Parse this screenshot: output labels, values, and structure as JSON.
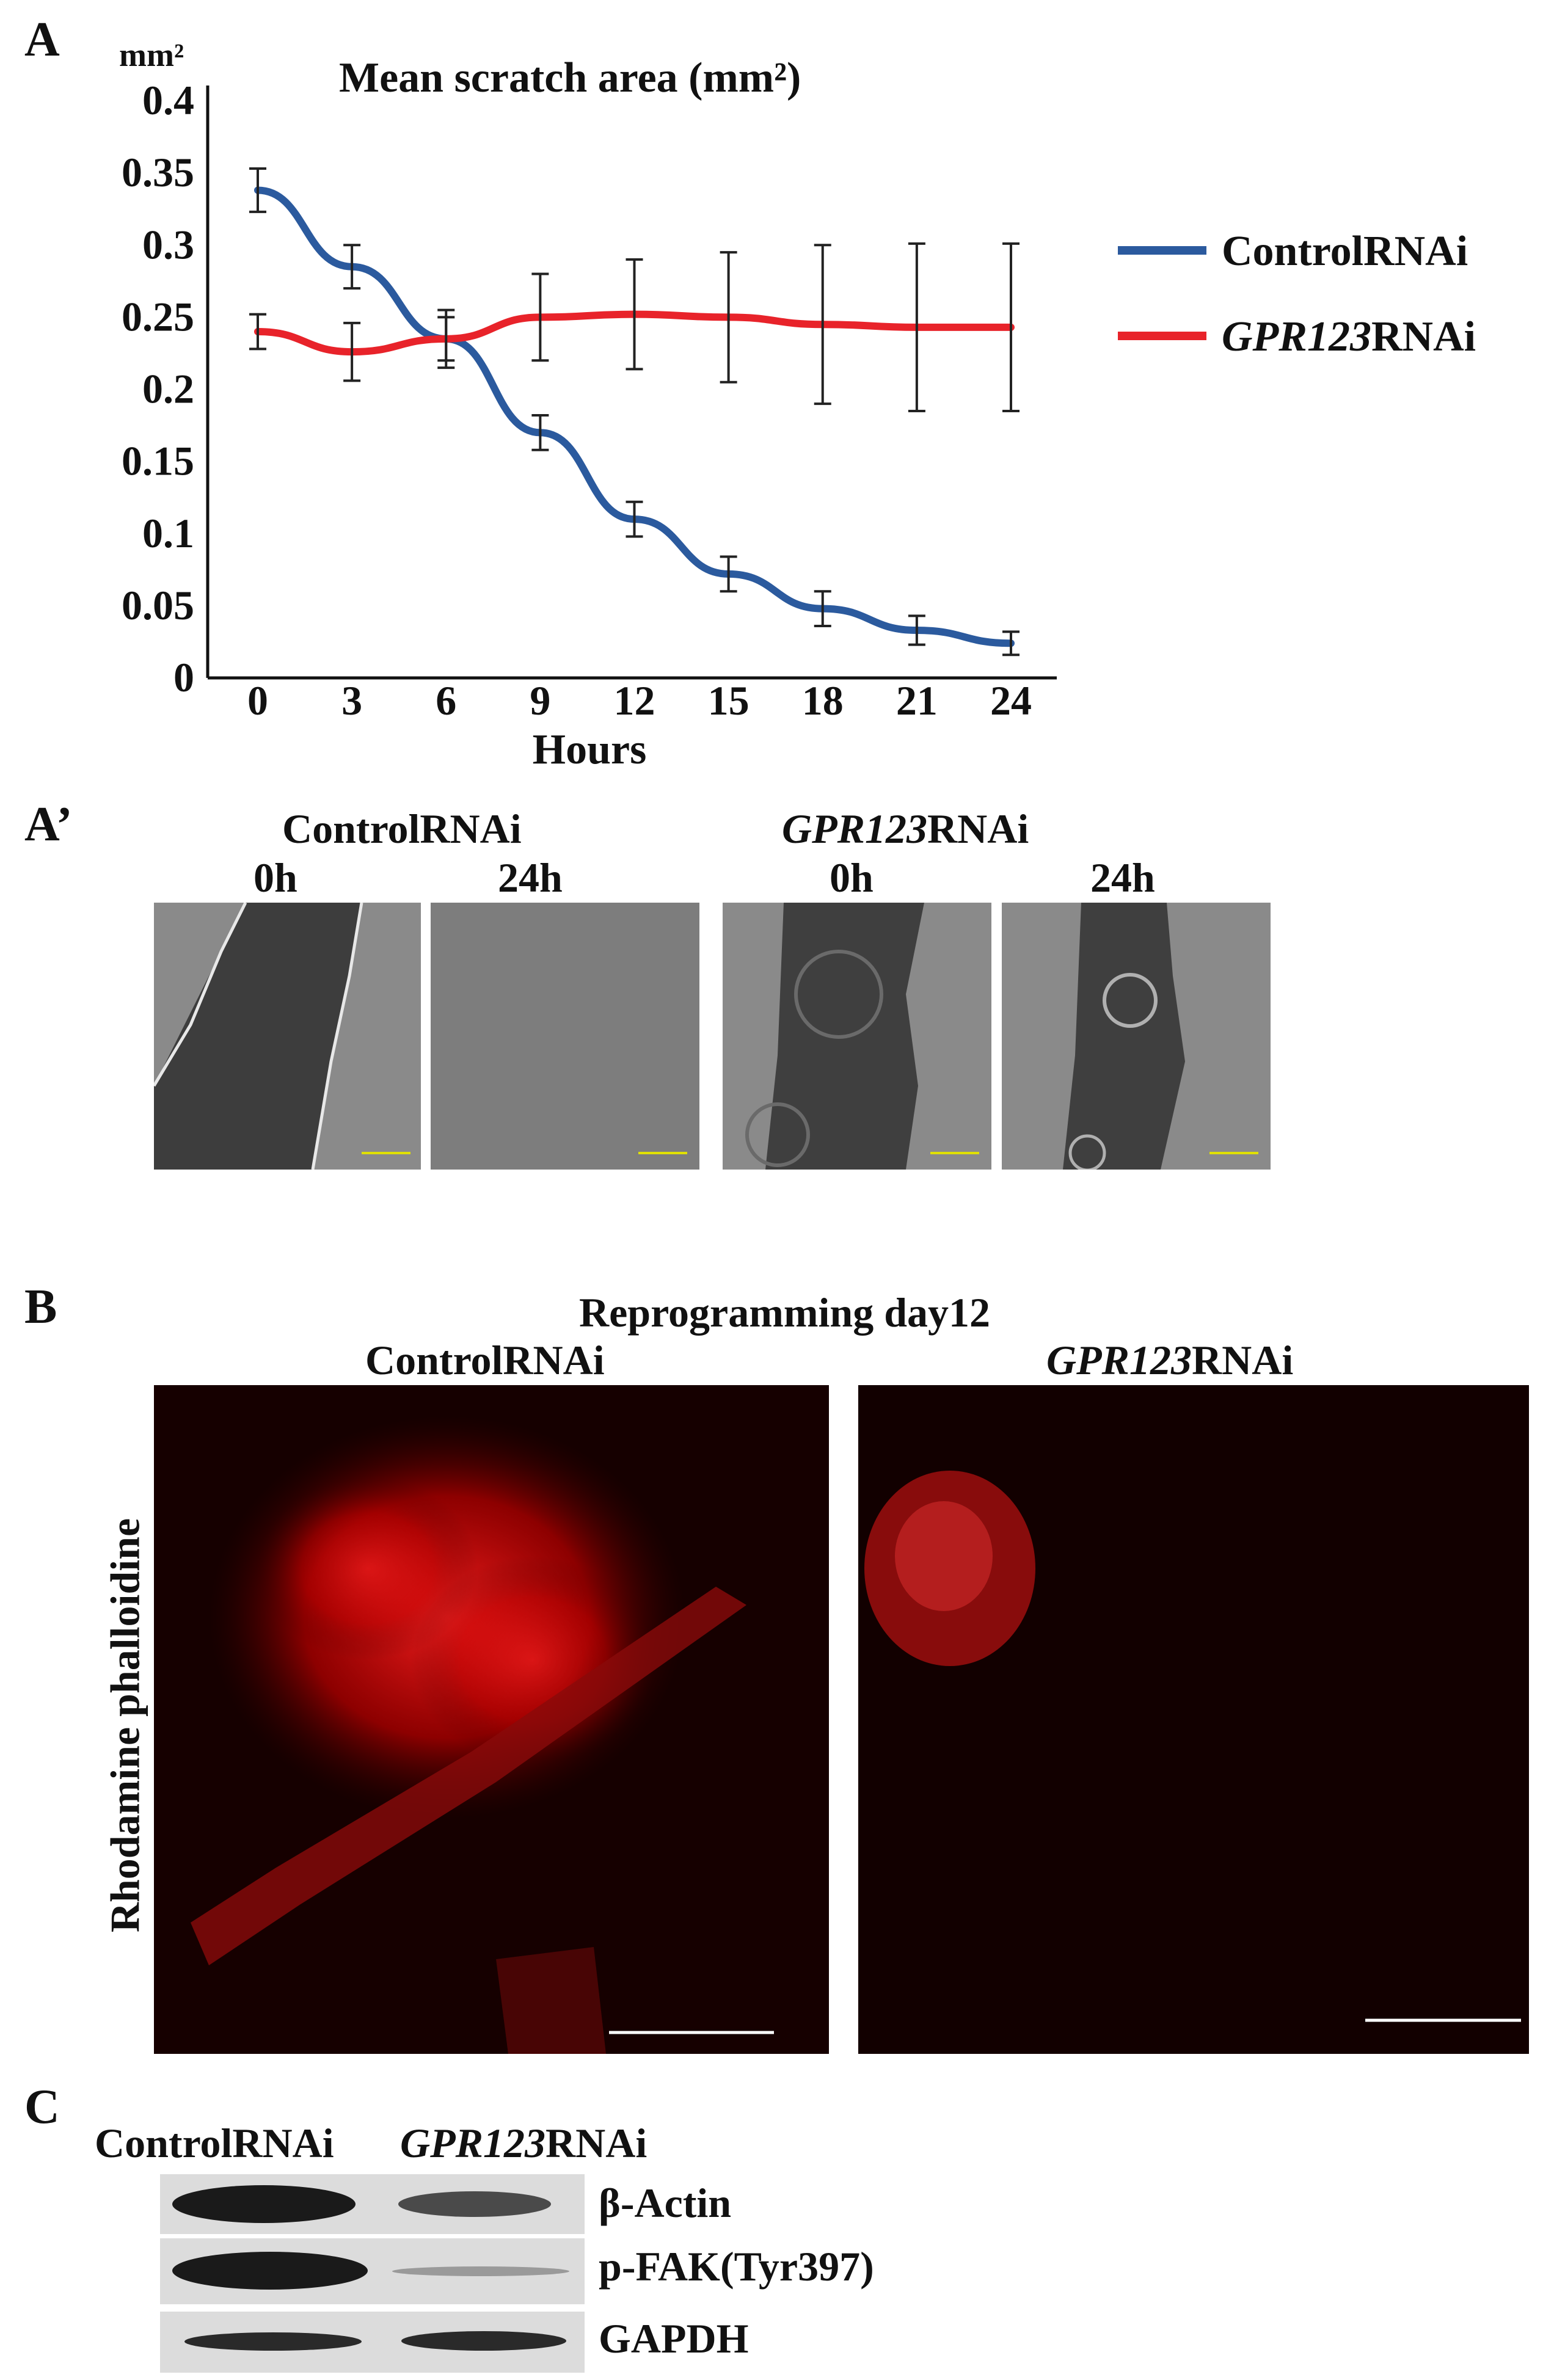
{
  "panels": {
    "a": "A",
    "a_prime": "A’",
    "b": "B",
    "c": "C"
  },
  "chart_data": {
    "type": "line",
    "title": "Mean scratch area (mm²)",
    "ylabel": "mm²",
    "xlabel": "Hours",
    "x": [
      0,
      3,
      6,
      9,
      12,
      15,
      18,
      21,
      24
    ],
    "xticks": [
      "0",
      "3",
      "6",
      "9",
      "12",
      "15",
      "18",
      "21",
      "24"
    ],
    "yticks": [
      "0",
      "0.05",
      "0.1",
      "0.15",
      "0.2",
      "0.25",
      "0.3",
      "0.35",
      "0.4"
    ],
    "ylim": [
      0,
      0.4
    ],
    "series": [
      {
        "name": "ControlRNAi",
        "color": "#2b5a9e",
        "values": [
          0.338,
          0.285,
          0.235,
          0.17,
          0.11,
          0.072,
          0.048,
          0.033,
          0.024
        ],
        "errors": [
          0.015,
          0.015,
          0.015,
          0.012,
          0.012,
          0.012,
          0.012,
          0.01,
          0.008
        ]
      },
      {
        "name": "GPR123RNAi",
        "color": "#e8232a",
        "values": [
          0.24,
          0.226,
          0.235,
          0.25,
          0.252,
          0.25,
          0.245,
          0.243,
          0.243
        ],
        "errors": [
          0.012,
          0.02,
          0.02,
          0.03,
          0.038,
          0.045,
          0.055,
          0.058,
          0.058
        ]
      }
    ],
    "legend": [
      {
        "prefix": "",
        "italic": "",
        "suffix": "ControlRNAi",
        "color": "#2b5a9e"
      },
      {
        "prefix": "",
        "italic": "GPR123",
        "suffix": "RNAi",
        "color": "#e8232a"
      }
    ]
  },
  "scratch_assay": {
    "control_label": "ControlRNAi",
    "gpr_label_italic": "GPR123",
    "gpr_label_suffix": "RNAi",
    "time_0": "0h",
    "time_24": "24h"
  },
  "phalloidin": {
    "title": "Reprogramming day12",
    "control_label": "ControlRNAi",
    "gpr_label_italic": "GPR123",
    "gpr_label_suffix": "RNAi",
    "side_label": "Rhodamine phalloidine"
  },
  "western": {
    "col_control": "ControlRNAi",
    "col_gpr_italic": "GPR123",
    "col_gpr_suffix": "RNAi",
    "rows": [
      "β-Actin",
      "p-FAK(Tyr397)",
      "GAPDH"
    ]
  }
}
